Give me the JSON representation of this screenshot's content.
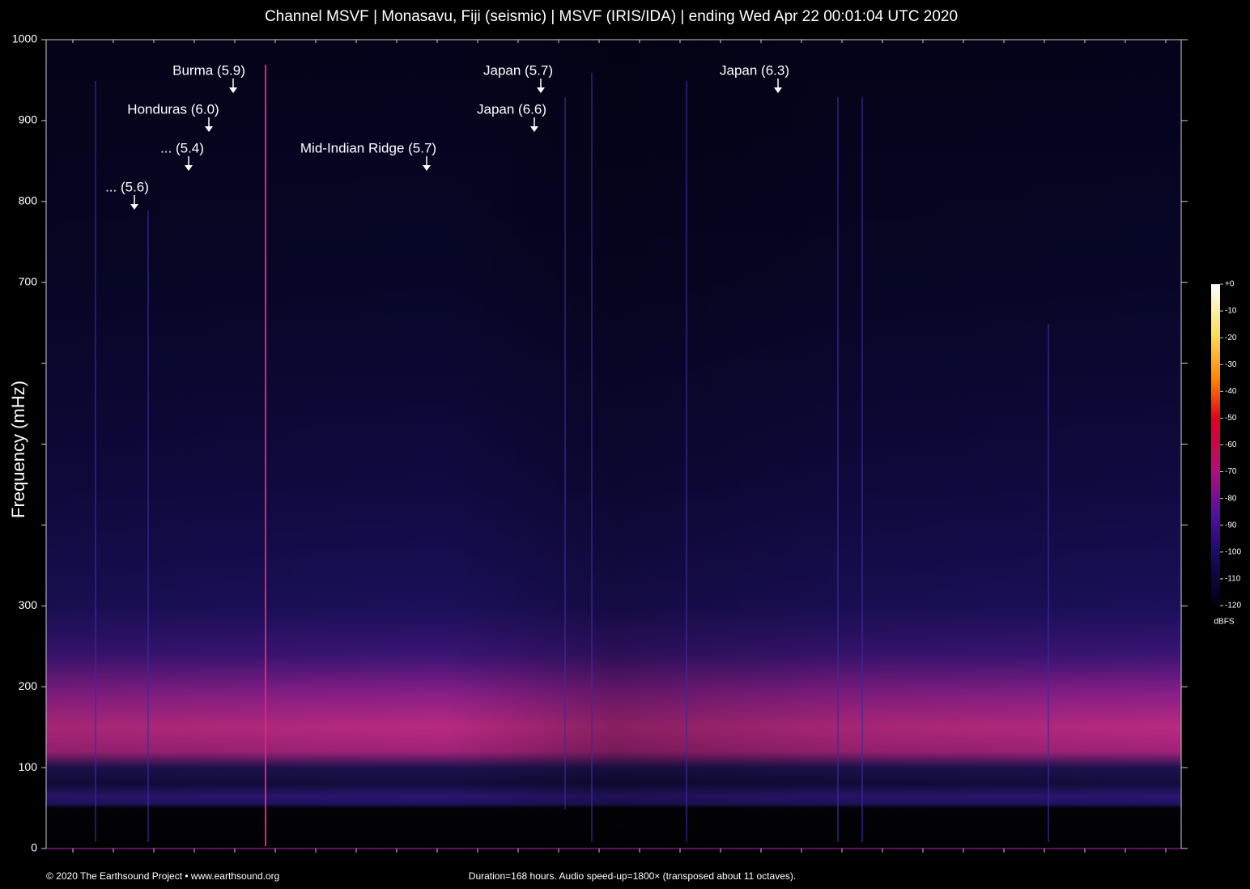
{
  "chart_data": {
    "type": "spectrogram",
    "title": "Channel MSVF | Monasavu, Fiji (seismic) | MSVF (IRIS/IDA) | ending Wed Apr 22 00:01:04 UTC 2020",
    "y_label": "Frequency (mHz)",
    "ylim": [
      0,
      1000
    ],
    "yticks": [
      0,
      100,
      200,
      300,
      700,
      800,
      900,
      1000
    ],
    "yticks_unlabeled": [
      400,
      500,
      600
    ],
    "colorbar": {
      "label": "dBFS",
      "lim": [
        -120,
        0
      ],
      "ticks": [
        {
          "value": 0,
          "label": "+0"
        },
        -10,
        -20,
        -30,
        -40,
        -50,
        -60,
        -70,
        -80,
        -90,
        -100,
        -110,
        -120
      ]
    },
    "annotations": [
      "Burma (5.9)",
      "Honduras (6.0)",
      "... (5.4)",
      "... (5.6)",
      "Japan (5.7)",
      "Japan (6.6)",
      "Mid-Indian Ridge (5.7)",
      "Japan (6.3)"
    ],
    "footer_left": "© 2020 The Earthsound Project • www.earthsound.org",
    "footer_center": "Duration=168 hours. Audio speed-up=1800× (transposed about 11 octaves)."
  }
}
